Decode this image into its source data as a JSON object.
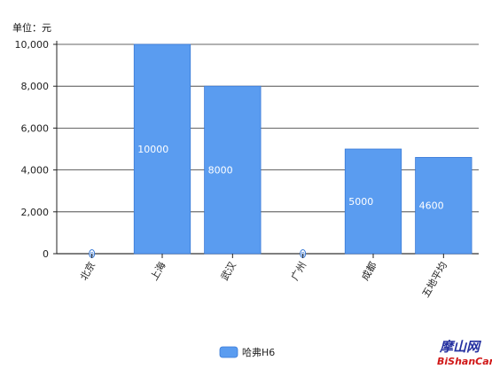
{
  "chart_data": {
    "type": "bar",
    "unit_label": "单位：元",
    "categories": [
      "北京",
      "上海",
      "武汉",
      "广州",
      "成都",
      "五地平均"
    ],
    "series": [
      {
        "name": "哈弗H6",
        "values": [
          0,
          10000,
          8000,
          0,
          5000,
          4600
        ],
        "value_labels": [
          "0",
          "10000",
          "8000",
          "0",
          "5000",
          "4600"
        ]
      }
    ],
    "ylim": [
      0,
      10000
    ],
    "yticks": [
      "0",
      "2,000",
      "4,000",
      "6,000",
      "8,000",
      "10,000"
    ],
    "grid": true,
    "legend_position": "bottom",
    "colors": {
      "bar": "#5a9cf0",
      "bar_stroke": "#3a7ad6",
      "grid": "#333333",
      "axis": "#222222"
    }
  },
  "watermark": {
    "top": "摩山网",
    "bottom": "BiShanCar"
  }
}
